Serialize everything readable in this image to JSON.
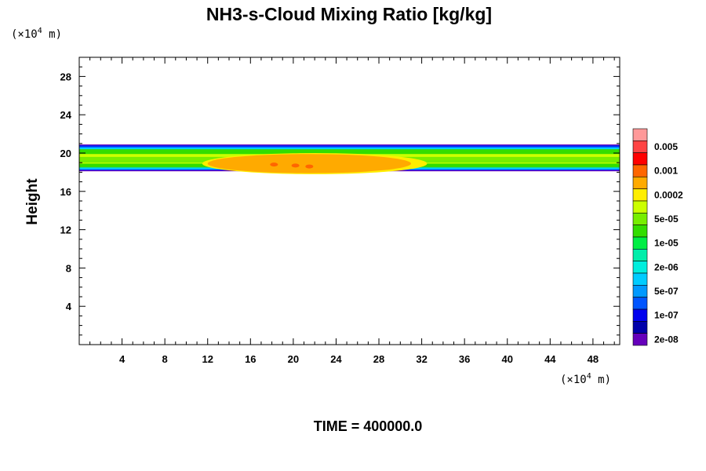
{
  "title": "NH3-s-Cloud Mixing Ratio [kg/kg]",
  "y_unit": {
    "prefix": "(×10",
    "exp": "4",
    "suffix": " m)"
  },
  "x_unit": {
    "prefix": "(×10",
    "exp": "4",
    "suffix": " m)"
  },
  "footer": "TIME = 400000.0",
  "chart_data": {
    "type": "heatmap",
    "title": "NH3-s-Cloud Mixing Ratio [kg/kg]",
    "xlabel": "",
    "ylabel": "Height",
    "xlim": [
      0,
      50.5
    ],
    "ylim": [
      0,
      30
    ],
    "x_ticks": [
      4,
      8,
      12,
      16,
      20,
      24,
      28,
      32,
      36,
      40,
      44,
      48
    ],
    "y_ticks": [
      4,
      8,
      12,
      16,
      20,
      24,
      28
    ],
    "colorbar": {
      "labels": [
        "0.005",
        "0.001",
        "0.0002",
        "5e-05",
        "1e-05",
        "2e-06",
        "5e-07",
        "1e-07",
        "2e-08"
      ],
      "colors": [
        "#ff9999",
        "#ff4444",
        "#ff0000",
        "#ff6600",
        "#ffaa00",
        "#ffee00",
        "#ccff00",
        "#77ee00",
        "#33dd00",
        "#00ee44",
        "#00eeaa",
        "#00eedd",
        "#00ccff",
        "#0099ff",
        "#0055ff",
        "#0000ee",
        "#0000aa",
        "#6600bb"
      ]
    },
    "layers": [
      {
        "name": "purple-edge",
        "color": "#6600bb",
        "top": 20.9,
        "bottom": 18.1
      },
      {
        "name": "blue",
        "color": "#0033ff",
        "top": 20.8,
        "bottom": 18.2
      },
      {
        "name": "cyan",
        "color": "#00ccff",
        "top": 20.6,
        "bottom": 18.3
      },
      {
        "name": "green",
        "color": "#33dd00",
        "top": 20.4,
        "bottom": 18.5
      },
      {
        "name": "yellow-green",
        "color": "#ccff00",
        "top": 19.9,
        "bottom": 18.9
      },
      {
        "name": "light-green",
        "color": "#77ee00",
        "top": 19.6,
        "bottom": 19.0
      }
    ],
    "core_regions": [
      {
        "name": "yellow-core",
        "color": "#ffee00",
        "x": [
          11.5,
          32.5
        ],
        "y": [
          17.8,
          20.0
        ]
      },
      {
        "name": "orange-core",
        "color": "#ffaa00",
        "x": [
          12.0,
          31.0
        ],
        "y": [
          17.9,
          19.9
        ]
      },
      {
        "name": "dark-orange-spots",
        "color": "#ff6600",
        "points": [
          [
            18.2,
            18.8
          ],
          [
            20.2,
            18.7
          ],
          [
            21.5,
            18.6
          ]
        ]
      }
    ]
  }
}
